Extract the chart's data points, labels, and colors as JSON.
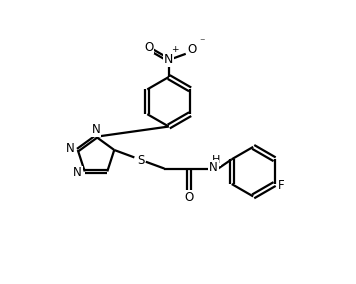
{
  "bg_color": "#ffffff",
  "line_color": "#000000",
  "line_width": 1.6,
  "font_size": 8.5,
  "fig_width": 3.56,
  "fig_height": 2.84,
  "dpi": 100,
  "xlim": [
    -1,
    10
  ],
  "ylim": [
    -0.5,
    8.5
  ]
}
